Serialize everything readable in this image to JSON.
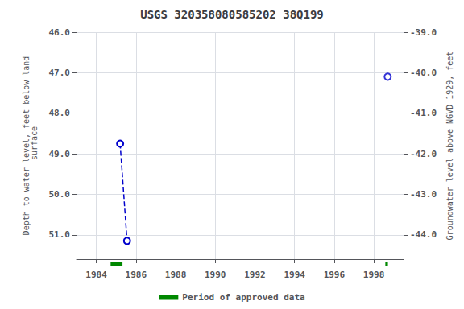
{
  "chart_data": {
    "type": "scatter",
    "title": "USGS 320358080585202 38Q199",
    "ylabel": "Depth to water level, feet below land\n surface",
    "y2label": "Groundwater level above NGVD 1929, feet",
    "xlim": [
      1983,
      1999.5
    ],
    "xticks": [
      1984,
      1986,
      1988,
      1990,
      1992,
      1994,
      1996,
      1998
    ],
    "ylim": [
      51.6,
      46.0
    ],
    "yticks": [
      {
        "value": 46.0,
        "label": "46.0"
      },
      {
        "value": 47.0,
        "label": "47.0"
      },
      {
        "value": 48.0,
        "label": "48.0"
      },
      {
        "value": 49.0,
        "label": "49.0"
      },
      {
        "value": 50.0,
        "label": "50.0"
      },
      {
        "value": 51.0,
        "label": "51.0"
      }
    ],
    "y2lim": [
      -44.6,
      -39.0
    ],
    "y2ticks": [
      {
        "value": -39.0,
        "label": "-39.0"
      },
      {
        "value": -40.0,
        "label": "-40.0"
      },
      {
        "value": -41.0,
        "label": "-41.0"
      },
      {
        "value": -42.0,
        "label": "-42.0"
      },
      {
        "value": -43.0,
        "label": "-43.0"
      },
      {
        "value": -44.0,
        "label": "-44.0"
      }
    ],
    "grid": true,
    "legend": "bottom",
    "series": [
      {
        "type": "line",
        "line_style": "dashed",
        "marker": "open circle",
        "color": "#0000cc",
        "x": [
          1985.2,
          1985.55
        ],
        "values": [
          48.75,
          51.15
        ]
      },
      {
        "type": "scatter",
        "marker": "open circle",
        "color": "#0000cc",
        "x": [
          1998.7
        ],
        "values": [
          47.1
        ]
      }
    ],
    "approved_periods": {
      "name": "Period of approved data",
      "color": "#008800",
      "start": [
        1984.72,
        1998.58
      ],
      "width": [
        0.6,
        0.13
      ]
    }
  }
}
